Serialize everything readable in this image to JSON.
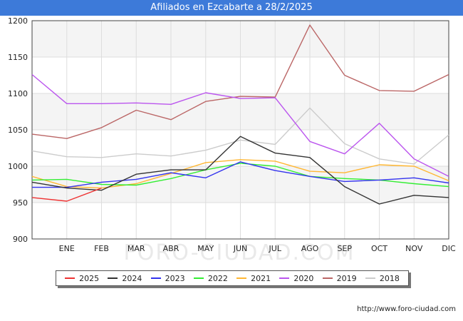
{
  "header": {
    "title": "Afiliados en Ezcabarte a 28/2/2025"
  },
  "source": "http://www.foro-ciudad.com",
  "watermark": "FORO-CIUDAD.COM",
  "chart_data": {
    "type": "line",
    "title": "Afiliados en Ezcabarte a 28/2/2025",
    "x": [
      "",
      "ENE",
      "FEB",
      "MAR",
      "ABR",
      "MAY",
      "JUN",
      "JUL",
      "AGO",
      "SEP",
      "OCT",
      "NOV",
      "DIC"
    ],
    "yticks": [
      900,
      950,
      1000,
      1050,
      1100,
      1150,
      1200
    ],
    "ylim": [
      900,
      1200
    ],
    "grid": true,
    "legend_position": "bottom",
    "series": [
      {
        "name": "2025",
        "color": "#ee3333",
        "values": [
          957,
          952,
          970,
          null,
          null,
          null,
          null,
          null,
          null,
          null,
          null,
          null,
          null
        ]
      },
      {
        "name": "2024",
        "color": "#333333",
        "values": [
          978,
          970,
          967,
          989,
          995,
          995,
          1041,
          1018,
          1012,
          972,
          948,
          960,
          957
        ]
      },
      {
        "name": "2023",
        "color": "#3333ee",
        "values": [
          971,
          971,
          978,
          982,
          991,
          984,
          1006,
          994,
          986,
          979,
          981,
          984,
          977
        ]
      },
      {
        "name": "2022",
        "color": "#33ee33",
        "values": [
          981,
          982,
          975,
          974,
          983,
          995,
          1004,
          1000,
          986,
          983,
          981,
          976,
          972
        ]
      },
      {
        "name": "2021",
        "color": "#ffb733",
        "values": [
          986,
          972,
          970,
          976,
          990,
          1005,
          1009,
          1007,
          993,
          991,
          1002,
          1000,
          980
        ]
      },
      {
        "name": "2020",
        "color": "#bb55ee",
        "values": [
          1126,
          1086,
          1086,
          1087,
          1085,
          1101,
          1093,
          1094,
          1034,
          1017,
          1059,
          1010,
          986
        ]
      },
      {
        "name": "2019",
        "color": "#bb6666",
        "values": [
          1044,
          1038,
          1053,
          1077,
          1064,
          1089,
          1096,
          1095,
          1194,
          1125,
          1104,
          1103,
          1126
        ]
      },
      {
        "name": "2018",
        "color": "#cccccc",
        "values": [
          1021,
          1013,
          1012,
          1017,
          1014,
          1022,
          1036,
          1030,
          1080,
          1031,
          1010,
          1003,
          1043
        ]
      }
    ]
  }
}
